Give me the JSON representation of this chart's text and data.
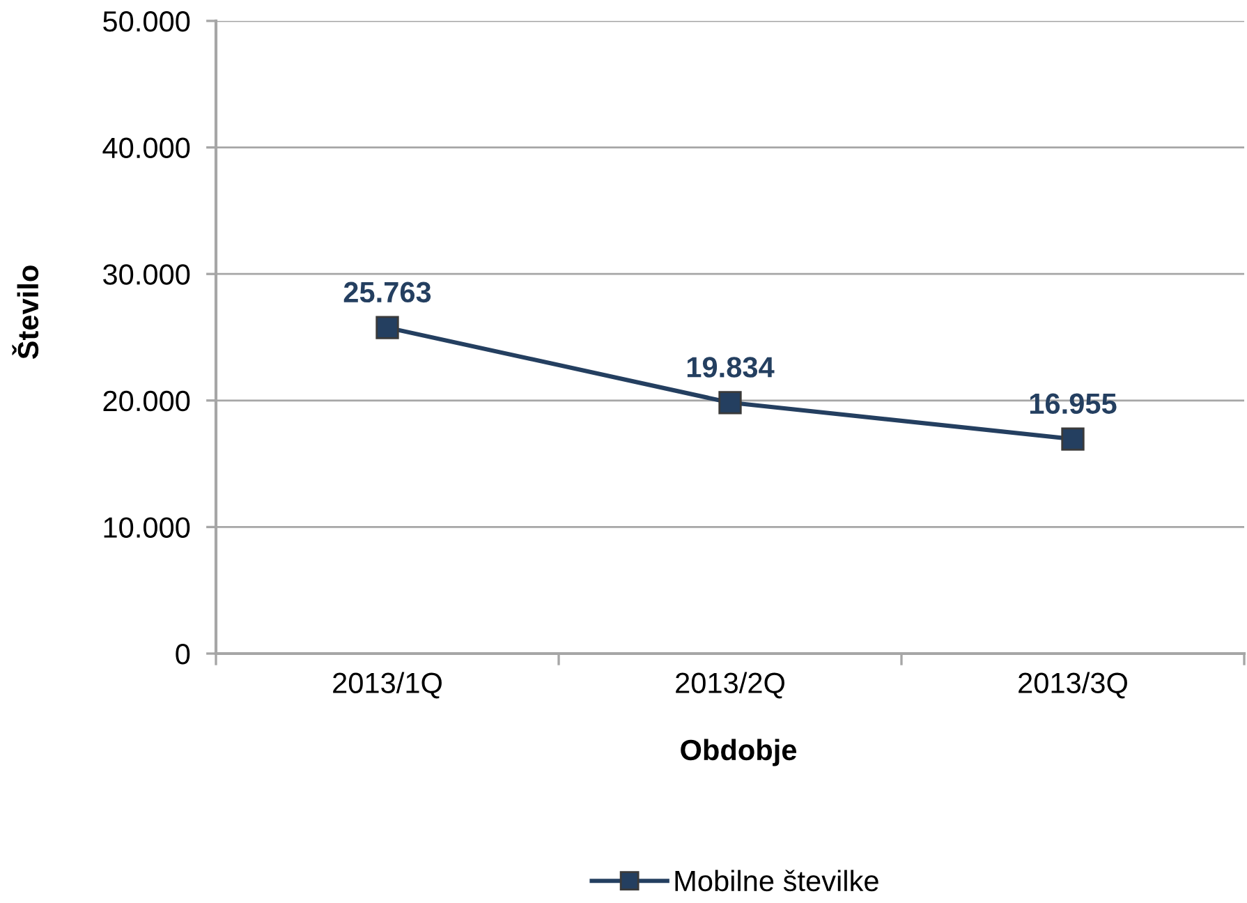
{
  "chart_data": {
    "type": "line",
    "xlabel": "Obdobje",
    "ylabel": "Število",
    "categories": [
      "2013/1Q",
      "2013/2Q",
      "2013/3Q"
    ],
    "series": [
      {
        "name": "Mobilne številke",
        "color": "#243f60",
        "values": [
          25763,
          19834,
          16955
        ],
        "value_labels": [
          "25.763",
          "19.834",
          "16.955"
        ]
      }
    ],
    "ylim": [
      0,
      50000
    ],
    "yticks": [
      0,
      {
        "value": 10000,
        "label": "10.000"
      },
      {
        "value": 20000,
        "label": "20.000"
      },
      {
        "value": 30000,
        "label": "30.000"
      },
      {
        "value": 40000,
        "label": "40.000"
      },
      {
        "value": 50000,
        "label": "50.000"
      }
    ],
    "grid": "y",
    "legend": "bottom",
    "marker": "square",
    "line_style": "solid"
  }
}
